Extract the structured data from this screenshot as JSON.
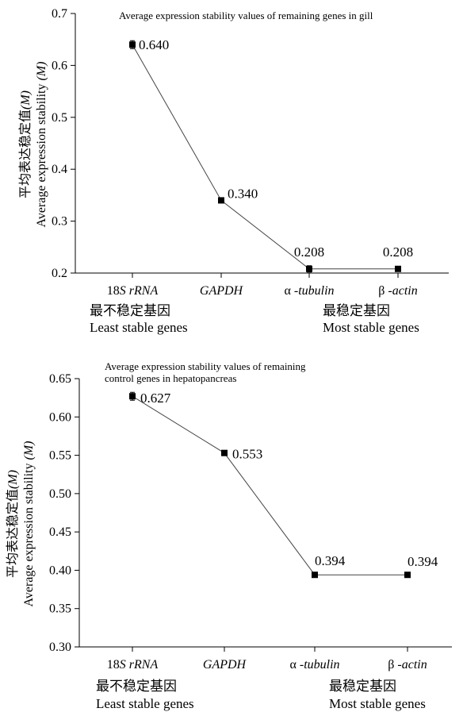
{
  "chart_data": [
    {
      "type": "line",
      "title": "Average expression stability values of remaining genes in gill",
      "ylabel_cn": "平均表达稳定值",
      "ylabel_cn_suffix": "(M)",
      "ylabel_en": "Average expression stability",
      "ylabel_en_suffix": "(M)",
      "categories": [
        "18S rRNA",
        "GAPDH",
        "α -tubulin",
        "β -actin"
      ],
      "values": [
        0.64,
        0.34,
        0.208,
        0.208
      ],
      "value_labels": [
        "0.640",
        "0.340",
        "0.208",
        "0.208"
      ],
      "yticks": [
        "0.2",
        "0.3",
        "0.4",
        "0.5",
        "0.6",
        "0.7"
      ],
      "ylim": [
        0.2,
        0.7
      ],
      "least_cn": "最不稳定基因",
      "least_en": "Least stable genes",
      "most_cn": "最稳定基因",
      "most_en": "Most stable genes"
    },
    {
      "type": "line",
      "title_line1": "Average expression stability values of remaining",
      "title_line2": "control genes in hepatopancreas",
      "ylabel_cn": "平均表达稳定值",
      "ylabel_cn_suffix": "(M)",
      "ylabel_en": "Average expression stability",
      "ylabel_en_suffix": "(M)",
      "categories": [
        "18S rRNA",
        "GAPDH",
        "α -tubulin",
        "β -actin"
      ],
      "values": [
        0.627,
        0.553,
        0.394,
        0.394
      ],
      "value_labels": [
        "0.627",
        "0.553",
        "0.394",
        "0.394"
      ],
      "yticks": [
        "0.30",
        "0.35",
        "0.40",
        "0.45",
        "0.50",
        "0.55",
        "0.60",
        "0.65"
      ],
      "ylim": [
        0.3,
        0.65
      ],
      "least_cn": "最不稳定基因",
      "least_en": "Least stable genes",
      "most_cn": "最稳定基因",
      "most_en": "Most stable genes"
    }
  ]
}
